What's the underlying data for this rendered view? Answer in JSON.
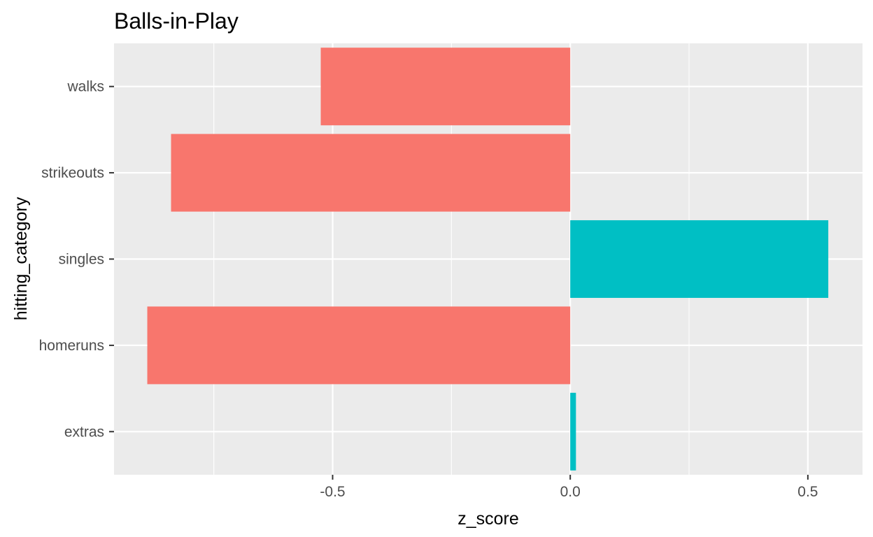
{
  "chart_data": {
    "type": "bar",
    "orientation": "horizontal",
    "title": "Balls-in-Play",
    "xlabel": "z_score",
    "ylabel": "hitting_category",
    "categories": [
      "extras",
      "homeruns",
      "singles",
      "strikeouts",
      "walks"
    ],
    "values": [
      0.012,
      -0.89,
      0.543,
      -0.84,
      -0.525
    ],
    "xlim": [
      -0.96,
      0.615
    ],
    "xticks": [
      -0.5,
      0.0,
      0.5
    ],
    "xtick_labels": [
      "-0.5",
      "0.0",
      "0.5"
    ],
    "grid": true,
    "legend": "none",
    "colors": {
      "negative": "#F8766D",
      "positive": "#00BFC4",
      "panel": "#EBEBEB",
      "grid": "#FFFFFF"
    }
  }
}
